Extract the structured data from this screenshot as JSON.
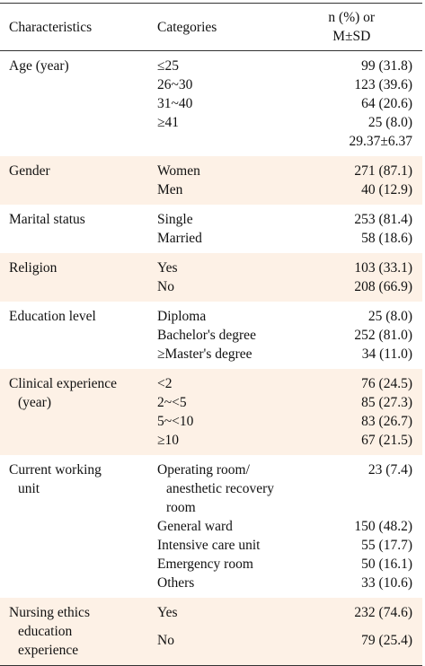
{
  "header": [
    "Characteristics",
    "Categories",
    [
      "n (%) or",
      "M±SD"
    ]
  ],
  "groups": [
    {
      "characteristic": "Age (year)",
      "rows": [
        {
          "category": "≤25",
          "value": "99 (31.8)"
        },
        {
          "category": "26~30",
          "value": "123 (39.6)"
        },
        {
          "category": "31~40",
          "value": "64 (20.6)"
        },
        {
          "category": "≥41",
          "value": "25 (8.0)"
        },
        {
          "value": "29.37±6.37"
        }
      ]
    },
    {
      "characteristic": "Gender",
      "rows": [
        {
          "category": "Women",
          "value": "271 (87.1)"
        },
        {
          "category": "Men",
          "value": "40 (12.9)"
        }
      ]
    },
    {
      "characteristic": "Marital status",
      "rows": [
        {
          "category": "Single",
          "value": "253 (81.4)"
        },
        {
          "category": "Married",
          "value": "58 (18.6)"
        }
      ]
    },
    {
      "characteristic": "Religion",
      "rows": [
        {
          "category": "Yes",
          "value": "103 (33.1)"
        },
        {
          "category": "No",
          "value": "208 (66.9)"
        }
      ]
    },
    {
      "characteristic": "Education level",
      "rows": [
        {
          "category": "Diploma",
          "value": "25 (8.0)"
        },
        {
          "category": "Bachelor's degree",
          "value": "252 (81.0)"
        },
        {
          "category": "≥Master's degree",
          "value": "34 (11.0)"
        }
      ]
    },
    {
      "characteristic": [
        "Clinical experience",
        "(year)"
      ],
      "rows": [
        {
          "category": "<2",
          "value": "76 (24.5)"
        },
        {
          "category": "2~<5",
          "value": "85 (27.3)"
        },
        {
          "category": "5~<10",
          "value": "83 (26.7)"
        },
        {
          "category": "≥10",
          "value": "67 (21.5)"
        }
      ]
    },
    {
      "characteristic": [
        "Current working",
        "unit"
      ],
      "rows": [
        {
          "category": [
            "Operating room/",
            "anesthetic recovery room"
          ],
          "value": "23 (7.4)"
        },
        {
          "category": "General ward",
          "value": "150 (48.2)"
        },
        {
          "category": "Intensive care unit",
          "value": "55 (17.7)"
        },
        {
          "category": "Emergency room",
          "value": "50 (16.1)"
        },
        {
          "category": "Others",
          "value": "33 (10.6)"
        }
      ]
    },
    {
      "characteristic": [
        "Nursing ethics",
        "education",
        "experience"
      ],
      "rows": [
        {
          "category": "Yes",
          "value": "232 (74.6)"
        },
        {
          "category": "No",
          "value": "79 (25.4)"
        }
      ]
    }
  ]
}
